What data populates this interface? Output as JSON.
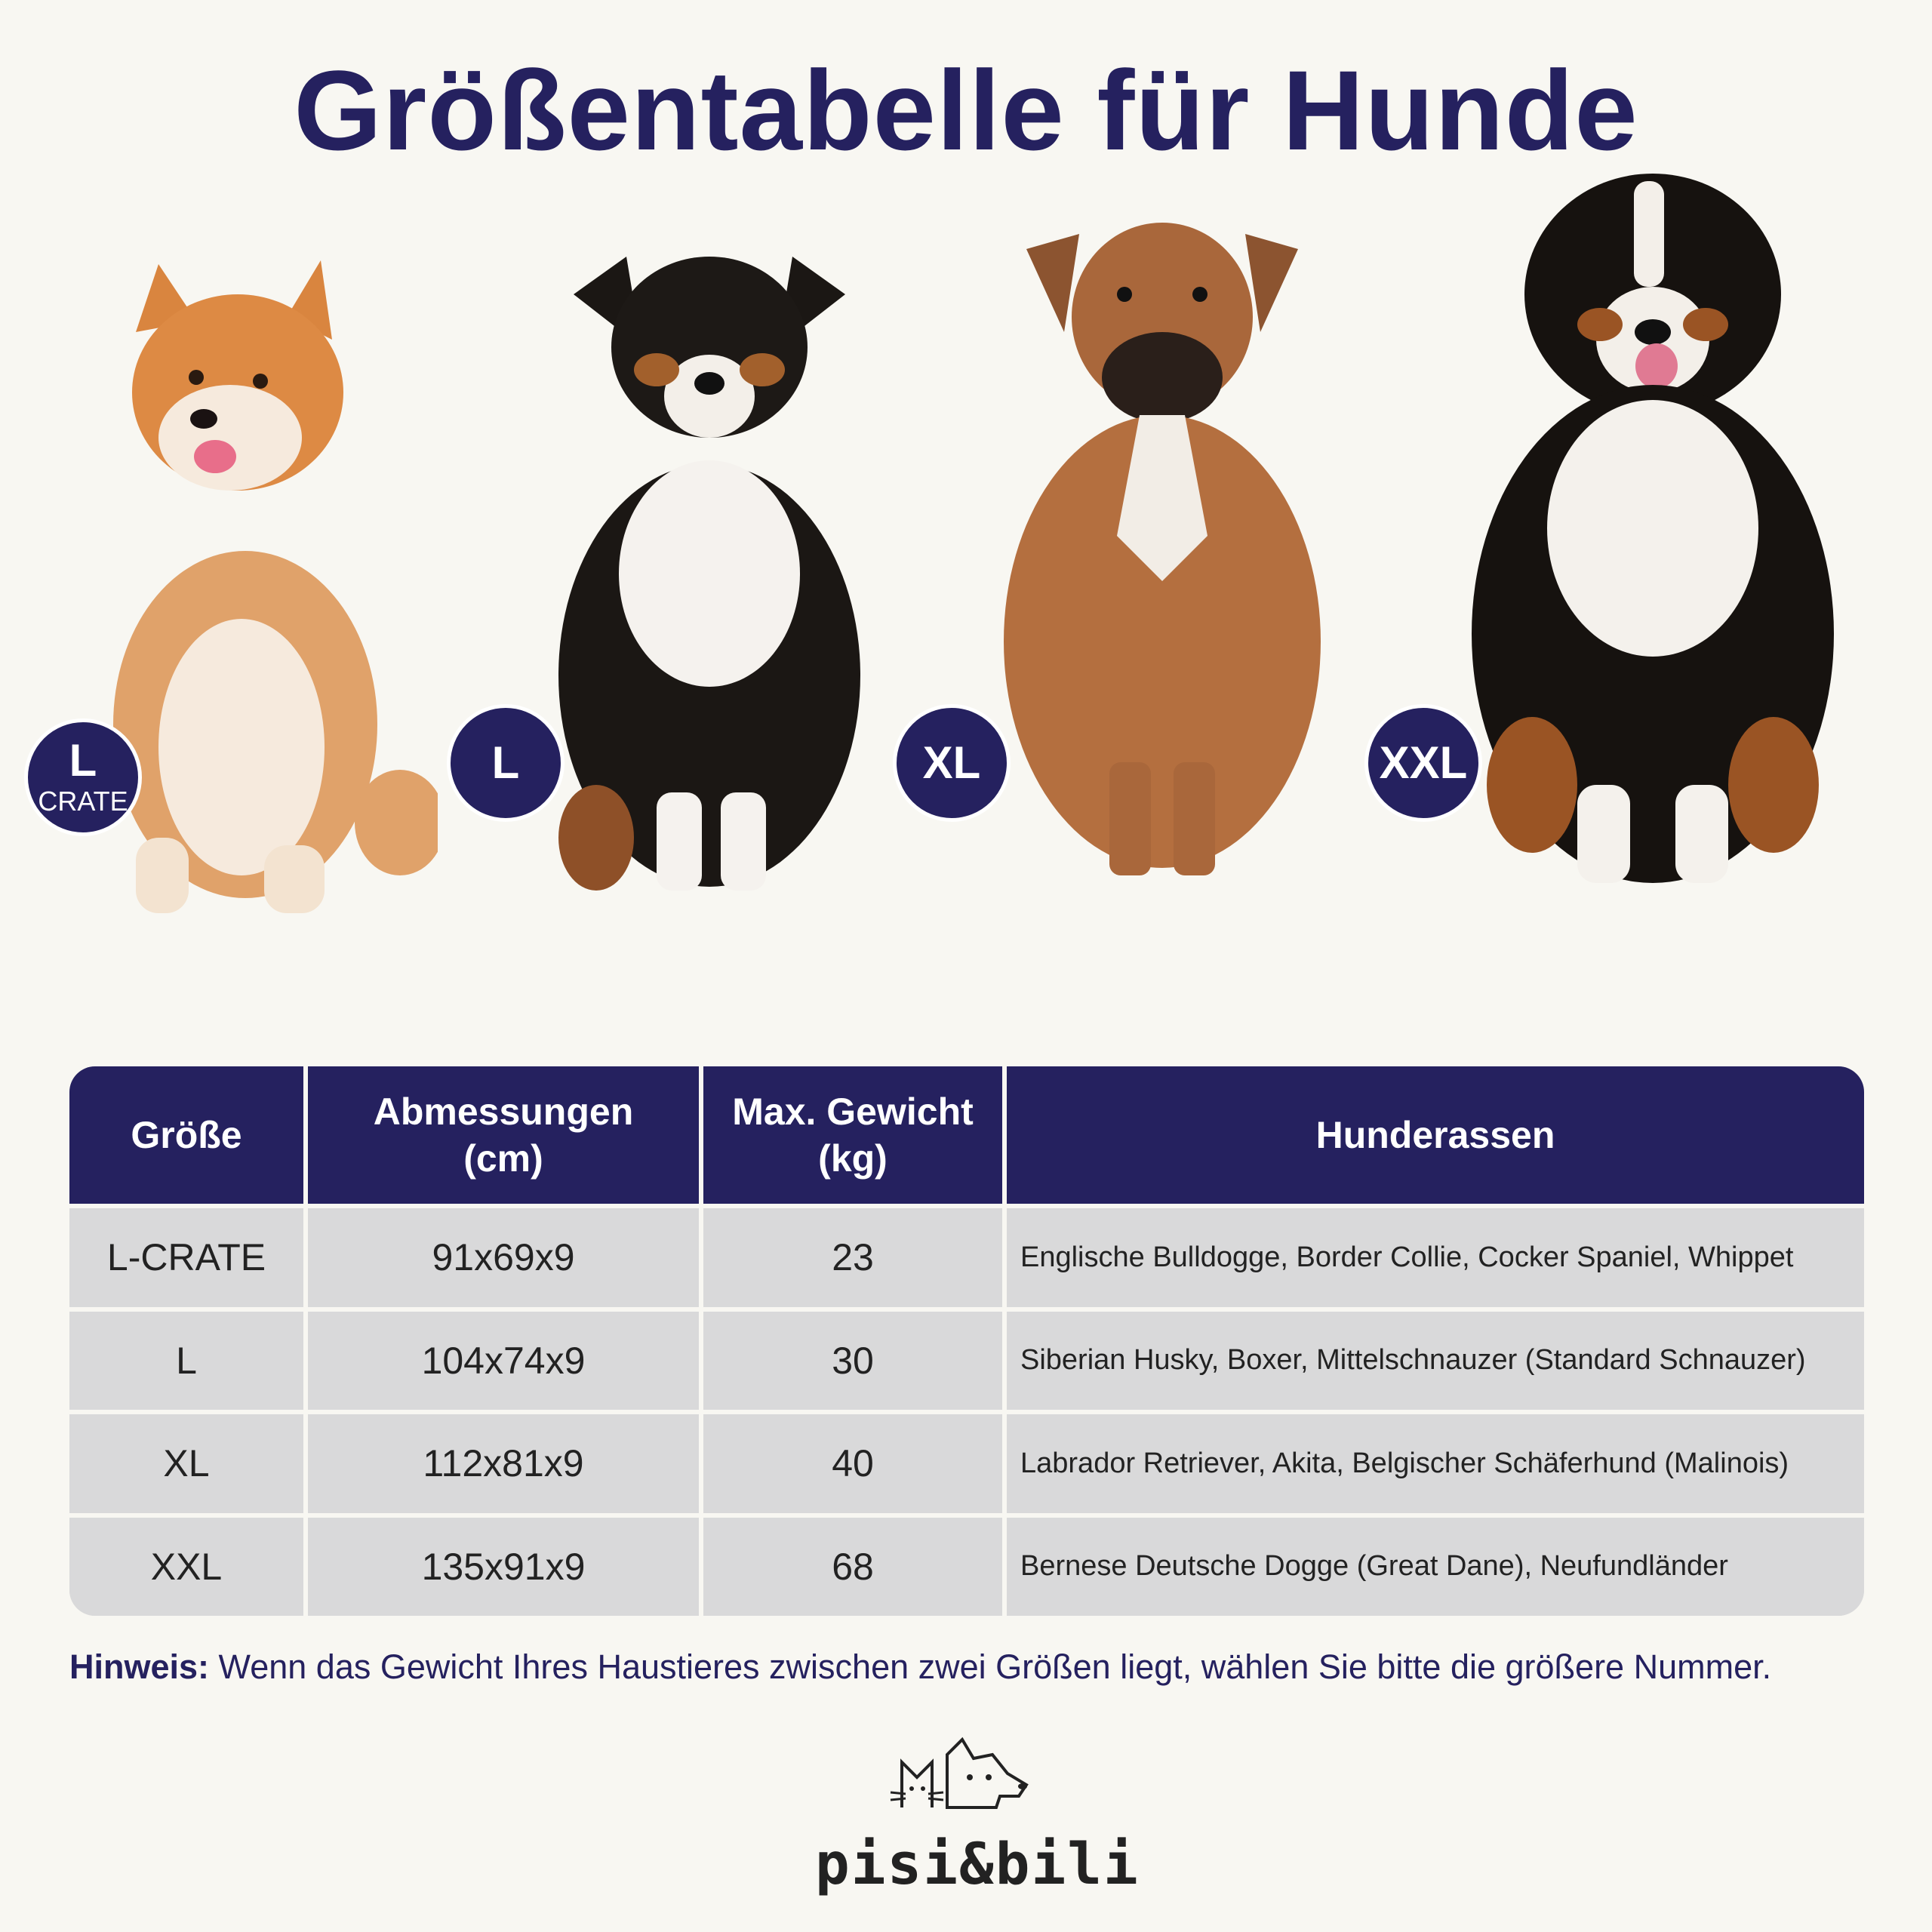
{
  "title": "Größentabelle für Hunde",
  "dogs": [
    {
      "name": "shiba",
      "size_big": "L",
      "size_small": "CRATE"
    },
    {
      "name": "shepherd",
      "size_big": "L"
    },
    {
      "name": "boxer",
      "size_big": "XL"
    },
    {
      "name": "bernese",
      "size_big": "XXL"
    }
  ],
  "table": {
    "headers": [
      "Größe",
      "Abmessungen\n(cm)",
      "Max. Gewicht\n(kg)",
      "Hunderassen"
    ],
    "header_lines": [
      [
        "Größe"
      ],
      [
        "Abmessungen",
        "(cm)"
      ],
      [
        "Max. Gewicht",
        "(kg)"
      ],
      [
        "Hunderassen"
      ]
    ],
    "rows": [
      {
        "size": "L-CRATE",
        "dims": "91x69x9",
        "weight": "23",
        "breeds": "Englische Bulldogge, Border Collie, Cocker Spaniel, Whippet"
      },
      {
        "size": "L",
        "dims": "104x74x9",
        "weight": "30",
        "breeds": "Siberian Husky, Boxer, Mittelschnauzer (Standard Schnauzer)"
      },
      {
        "size": "XL",
        "dims": "112x81x9",
        "weight": "40",
        "breeds": "Labrador Retriever, Akita, Belgischer Schäferhund (Malinois)"
      },
      {
        "size": "XXL",
        "dims": "135x91x9",
        "weight": "68",
        "breeds": "Bernese Deutsche Dogge (Great Dane), Neufundländer"
      }
    ]
  },
  "note": {
    "label": "Hinweis:",
    "text": " Wenn das Gewicht Ihres Haustieres zwischen zwei Größen liegt, wählen Sie bitte die größere Nummer."
  },
  "logo": {
    "text": "pisi&bili"
  },
  "colors": {
    "navy": "#25215f",
    "row_bg": "#d9d9da",
    "page_bg": "#f8f7f2"
  }
}
